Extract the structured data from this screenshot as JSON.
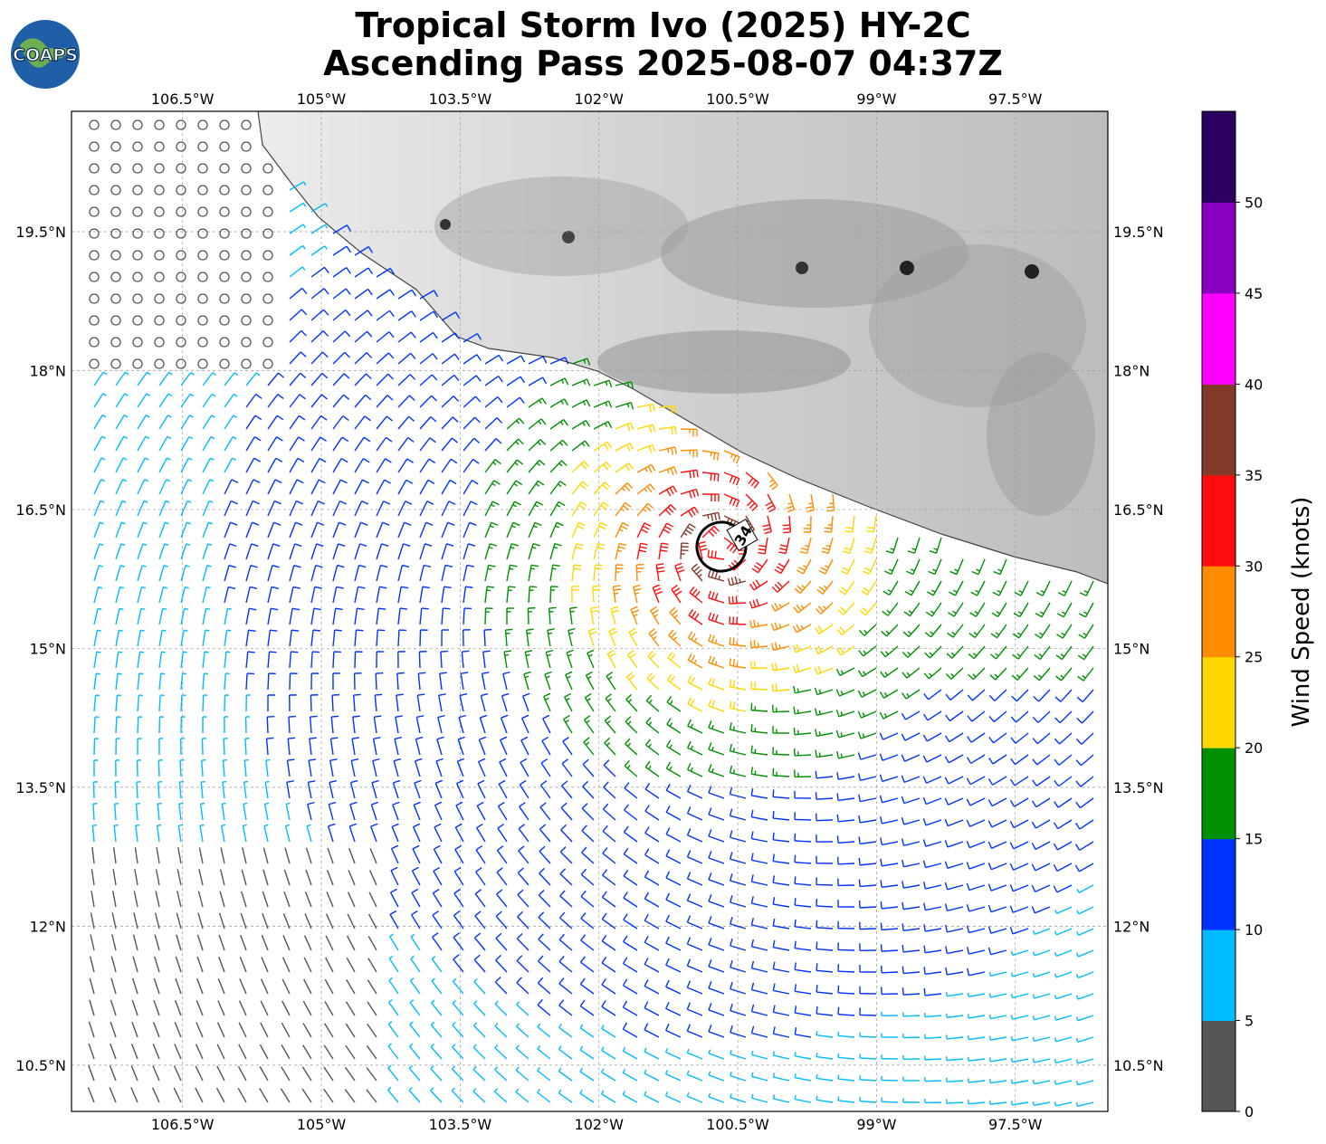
{
  "title": {
    "line1": "Tropical Storm Ivo (2025) HY-2C",
    "line2": "Ascending Pass 2025-08-07 04:37Z"
  },
  "logo": {
    "text": "COAPS",
    "icon": "globe-icon"
  },
  "map": {
    "lon_labels": [
      "106.5°W",
      "105°W",
      "103.5°W",
      "102°W",
      "100.5°W",
      "99°W",
      "97.5°W"
    ],
    "lat_labels": [
      "19.5°N",
      "18°N",
      "16.5°N",
      "15°N",
      "13.5°N",
      "12°N",
      "10.5°N"
    ],
    "lon_range": [
      -107.7,
      -96.5
    ],
    "lat_range": [
      10.0,
      20.8
    ],
    "storm": {
      "radius_label": "34",
      "center_lon": -100.63,
      "center_lat": 16.09
    },
    "land_color": "#e9e9e9",
    "ocean_color": "#ffffff"
  },
  "colorbar": {
    "label": "Wind Speed (knots)",
    "ticks": [
      "0",
      "5",
      "10",
      "15",
      "20",
      "25",
      "30",
      "35",
      "40",
      "45",
      "50"
    ],
    "colors": [
      "#555555",
      "#00bbff",
      "#0033ff",
      "#009000",
      "#ffd700",
      "#ff8c00",
      "#ff0d0d",
      "#833b29",
      "#ff00ff",
      "#8a00c0",
      "#2c0060"
    ]
  }
}
